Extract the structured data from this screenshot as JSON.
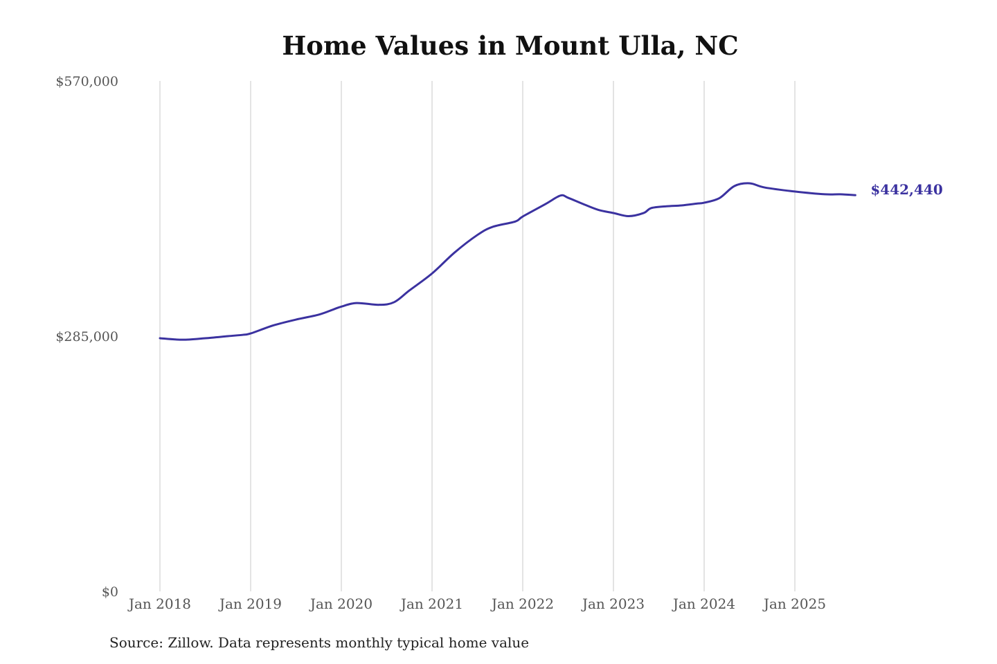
{
  "chart_data": {
    "type": "line",
    "title": "Home Values in Mount Ulla, NC",
    "xlabel": "",
    "ylabel": "",
    "ylim": [
      0,
      570000
    ],
    "y_ticks": [
      {
        "value": 0,
        "label": "$0"
      },
      {
        "value": 285000,
        "label": "$285,000"
      },
      {
        "value": 570000,
        "label": "$570,000"
      }
    ],
    "x_ticks": [
      {
        "month": 0,
        "label": "Jan 2018"
      },
      {
        "month": 12,
        "label": "Jan 2019"
      },
      {
        "month": 24,
        "label": "Jan 2020"
      },
      {
        "month": 36,
        "label": "Jan 2021"
      },
      {
        "month": 48,
        "label": "Jan 2022"
      },
      {
        "month": 60,
        "label": "Jan 2023"
      },
      {
        "month": 72,
        "label": "Jan 2024"
      },
      {
        "month": 84,
        "label": "Jan 2025"
      }
    ],
    "x_unit": "months since Jan 2018",
    "grid": "vertical",
    "series": [
      {
        "name": "Typical home value",
        "color": "#3b32a0",
        "end_label": "$442,440",
        "points": [
          [
            0,
            282700
          ],
          [
            3,
            281000
          ],
          [
            6,
            282700
          ],
          [
            9,
            285000
          ],
          [
            11,
            286500
          ],
          [
            12,
            288000
          ],
          [
            15,
            297000
          ],
          [
            18,
            303500
          ],
          [
            21,
            309000
          ],
          [
            23,
            315000
          ],
          [
            24,
            318000
          ],
          [
            26,
            322000
          ],
          [
            29,
            320000
          ],
          [
            31,
            323000
          ],
          [
            33,
            336000
          ],
          [
            36,
            355000
          ],
          [
            39,
            378500
          ],
          [
            42,
            398000
          ],
          [
            44,
            407000
          ],
          [
            47,
            413000
          ],
          [
            48,
            418600
          ],
          [
            51,
            432500
          ],
          [
            53,
            442000
          ],
          [
            54,
            439500
          ],
          [
            56,
            432500
          ],
          [
            58,
            426000
          ],
          [
            60,
            422500
          ],
          [
            62,
            419000
          ],
          [
            64,
            422500
          ],
          [
            65,
            428000
          ],
          [
            67,
            430000
          ],
          [
            69,
            431000
          ],
          [
            71,
            433000
          ],
          [
            72,
            434000
          ],
          [
            74,
            439000
          ],
          [
            76,
            452600
          ],
          [
            78,
            455700
          ],
          [
            80,
            451000
          ],
          [
            84,
            446500
          ],
          [
            88,
            443400
          ],
          [
            90,
            443400
          ],
          [
            92,
            442440
          ]
        ]
      }
    ]
  },
  "source": "Source: Zillow. Data represents monthly typical home value"
}
